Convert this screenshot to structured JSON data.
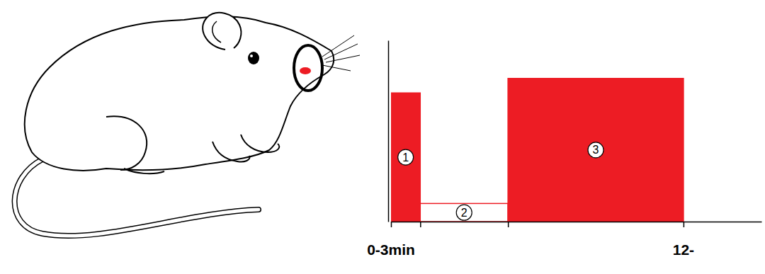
{
  "chart_data": {
    "type": "histogram",
    "bins": [
      0,
      3,
      12,
      30
    ],
    "values": [
      71,
      10,
      79
    ],
    "colors": [
      "#ed1c24",
      "#ffffff",
      "#ed1c24"
    ],
    "color": "#ed1c24",
    "bar_labels": [
      "1",
      "2",
      "3"
    ],
    "xlim": [
      0,
      38
    ],
    "xticks": [
      0,
      3,
      12,
      30
    ],
    "ylim": [
      0,
      100
    ],
    "yticks": [],
    "tick_labels": false,
    "annotations": [
      {
        "text": "0-3min",
        "x": 0
      },
      {
        "text": "12-",
        "x": 30
      }
    ]
  }
}
